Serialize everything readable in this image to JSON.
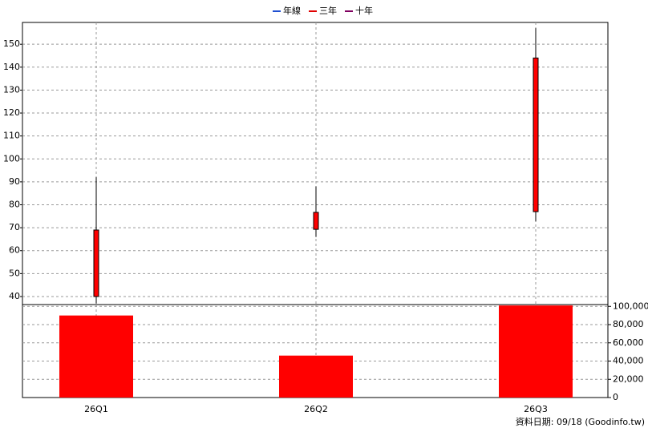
{
  "chart_data": [
    {
      "type": "candlestick",
      "legend": [
        {
          "name": "年線",
          "color": "#1f4fd1"
        },
        {
          "name": "三年",
          "color": "#e00000"
        },
        {
          "name": "十年",
          "color": "#800060"
        }
      ],
      "categories": [
        "26Q1",
        "26Q2",
        "26Q3"
      ],
      "open": [
        40,
        69.3,
        77
      ],
      "close": [
        69,
        76.7,
        144
      ],
      "high": [
        92,
        88,
        157
      ],
      "low": [
        37,
        66,
        72.8
      ],
      "color": "#ff0000",
      "ylim": [
        36.5,
        159.5
      ],
      "yticks": [
        40,
        50,
        60,
        70,
        80,
        90,
        100,
        110,
        120,
        130,
        140,
        150
      ],
      "grid": true
    },
    {
      "type": "bar",
      "categories": [
        "26Q1",
        "26Q2",
        "26Q3"
      ],
      "values": [
        90000,
        46000,
        101000
      ],
      "color": "#ff0000",
      "ylim": [
        0,
        102000
      ],
      "yticks": [
        0,
        {
          "value": 20000,
          "label": "20,000"
        },
        {
          "value": 40000,
          "label": "40,000"
        },
        {
          "value": 60000,
          "label": "60,000"
        },
        {
          "value": 80000,
          "label": "80,000"
        },
        {
          "value": 100000,
          "label": "100,000"
        }
      ],
      "grid": true,
      "source": "資料日期: 09/18  (Goodinfo.tw)"
    }
  ]
}
